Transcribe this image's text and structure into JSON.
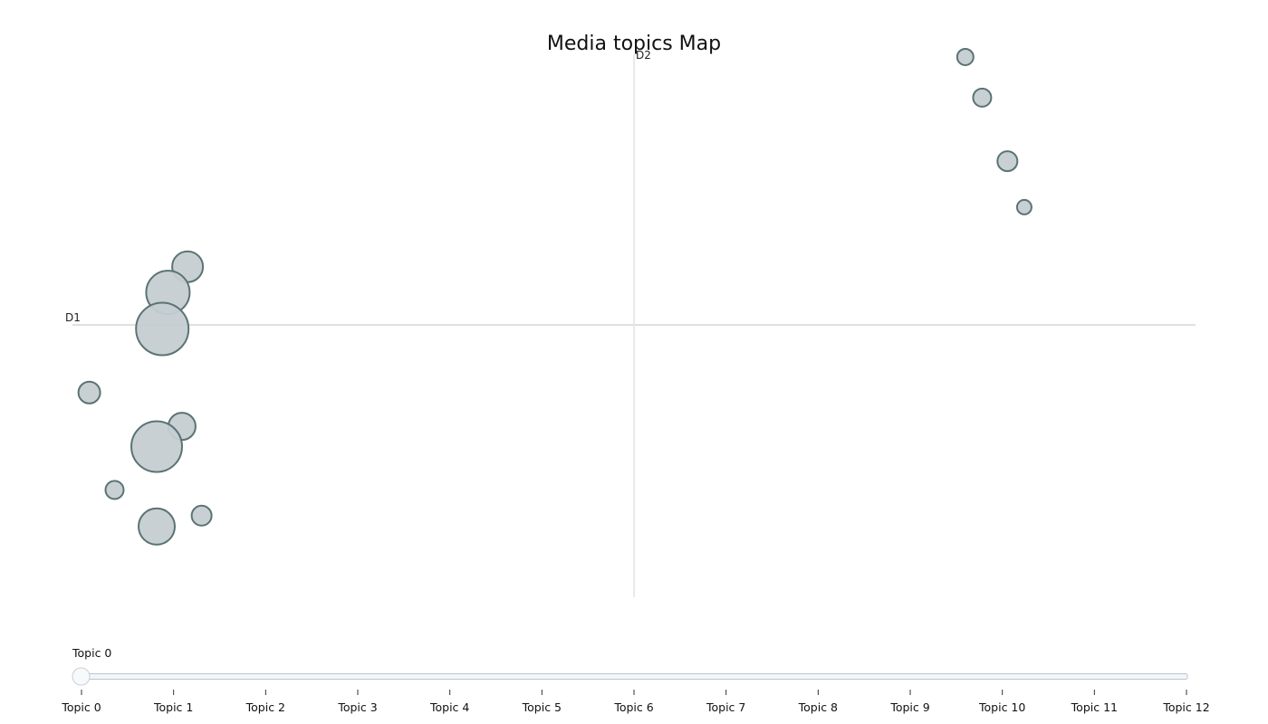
{
  "chart_data": {
    "type": "scatter",
    "title": "Media topics Map",
    "axes": {
      "x_label": "D1",
      "y_label": "D2",
      "x_range": [
        -10,
        10
      ],
      "y_range": [
        -10,
        10
      ]
    },
    "series": [
      {
        "name": "topics",
        "points": [
          {
            "x": 5.9,
            "y": 9.9,
            "size": 9
          },
          {
            "x": 6.2,
            "y": 8.4,
            "size": 10
          },
          {
            "x": 6.65,
            "y": 6.05,
            "size": 11
          },
          {
            "x": 6.95,
            "y": 4.35,
            "size": 8
          },
          {
            "x": -7.95,
            "y": 2.15,
            "size": 17
          },
          {
            "x": -8.3,
            "y": 1.2,
            "size": 24
          },
          {
            "x": -8.4,
            "y": -0.15,
            "size": 29
          },
          {
            "x": -9.7,
            "y": -2.5,
            "size": 12
          },
          {
            "x": -8.05,
            "y": -3.75,
            "size": 15
          },
          {
            "x": -8.5,
            "y": -4.5,
            "size": 28
          },
          {
            "x": -9.25,
            "y": -6.1,
            "size": 10
          },
          {
            "x": -7.7,
            "y": -7.05,
            "size": 11
          },
          {
            "x": -8.5,
            "y": -7.45,
            "size": 20
          }
        ]
      }
    ]
  },
  "slider": {
    "current_label": "Topic 0",
    "current_index": 0,
    "ticks": [
      "Topic 0",
      "Topic 1",
      "Topic 2",
      "Topic 3",
      "Topic 4",
      "Topic 5",
      "Topic 6",
      "Topic 7",
      "Topic 8",
      "Topic 9",
      "Topic 10",
      "Topic 11",
      "Topic 12"
    ]
  },
  "colors": {
    "bubble_fill": "#c5cdd2",
    "bubble_stroke": "#5b7373",
    "axis_line": "#d6d6d6"
  }
}
